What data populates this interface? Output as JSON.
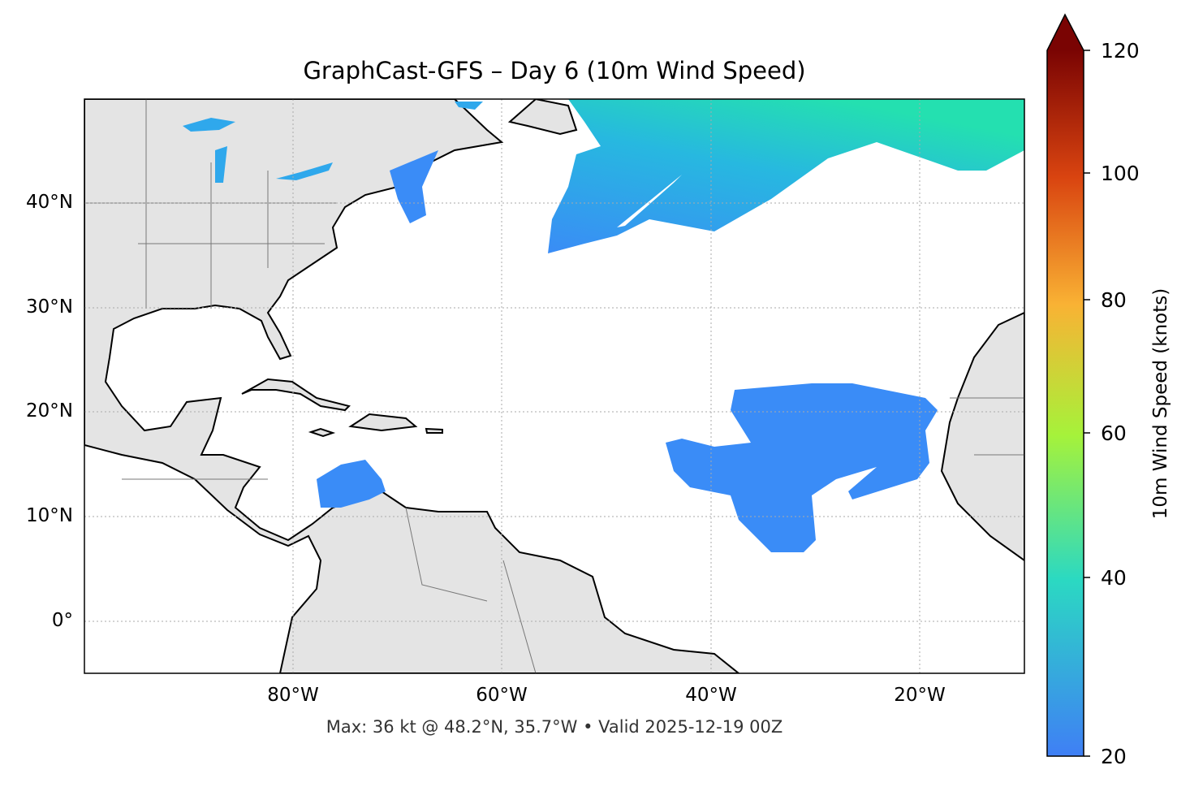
{
  "title": "GraphCast-GFS – Day 6 (10m Wind Speed)",
  "footer": "Max: 36 kt @ 48.2°N, 35.7°W • Valid 2025-12-19 00Z",
  "map": {
    "extent": {
      "lon": [
        -100,
        -10
      ],
      "lat": [
        -5,
        50
      ]
    },
    "lat_labels": [
      "40°N",
      "30°N",
      "20°N",
      "10°N",
      "0°"
    ],
    "lon_labels": [
      "80°W",
      "60°W",
      "40°W",
      "20°W"
    ],
    "land_color": "#e4e4e4",
    "gridlines": true
  },
  "colorbar": {
    "label": "10m Wind Speed (knots)",
    "ticks": [
      "20",
      "40",
      "60",
      "80",
      "100",
      "120"
    ],
    "range": [
      20,
      120
    ],
    "extend": "max",
    "colormap": "turbo"
  }
}
